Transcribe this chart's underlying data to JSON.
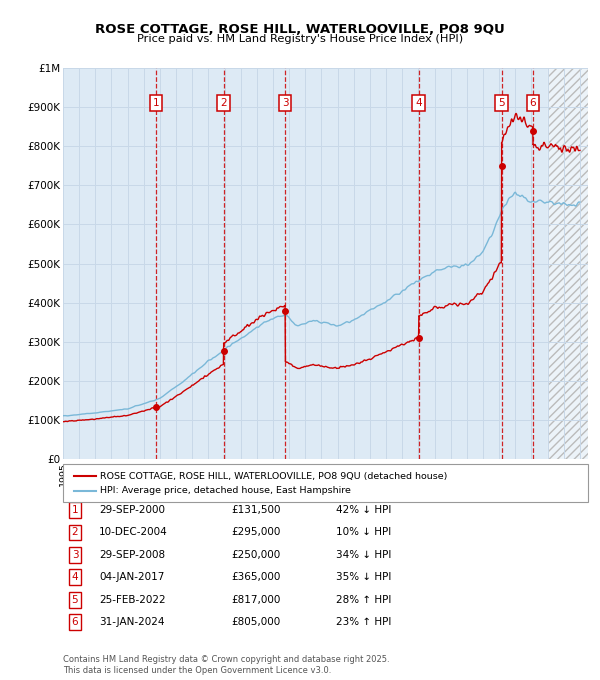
{
  "title": "ROSE COTTAGE, ROSE HILL, WATERLOOVILLE, PO8 9QU",
  "subtitle": "Price paid vs. HM Land Registry's House Price Index (HPI)",
  "xlim": [
    1995.0,
    2027.5
  ],
  "ylim": [
    0,
    1000000
  ],
  "ytick_labels": [
    "£0",
    "£100K",
    "£200K",
    "£300K",
    "£400K",
    "£500K",
    "£600K",
    "£700K",
    "£800K",
    "£900K",
    "£1M"
  ],
  "sales": [
    {
      "num": 1,
      "year": 2000.75,
      "price": 131500,
      "label": "1"
    },
    {
      "num": 2,
      "year": 2004.94,
      "price": 295000,
      "label": "2"
    },
    {
      "num": 3,
      "year": 2008.75,
      "price": 250000,
      "label": "3"
    },
    {
      "num": 4,
      "year": 2017.01,
      "price": 365000,
      "label": "4"
    },
    {
      "num": 5,
      "year": 2022.15,
      "price": 817000,
      "label": "5"
    },
    {
      "num": 6,
      "year": 2024.08,
      "price": 805000,
      "label": "6"
    }
  ],
  "legend_line1": "ROSE COTTAGE, ROSE HILL, WATERLOOVILLE, PO8 9QU (detached house)",
  "legend_line2": "HPI: Average price, detached house, East Hampshire",
  "table": [
    {
      "num": "1",
      "date": "29-SEP-2000",
      "price": "£131,500",
      "hpi": "42% ↓ HPI"
    },
    {
      "num": "2",
      "date": "10-DEC-2004",
      "price": "£295,000",
      "hpi": "10% ↓ HPI"
    },
    {
      "num": "3",
      "date": "29-SEP-2008",
      "price": "£250,000",
      "hpi": "34% ↓ HPI"
    },
    {
      "num": "4",
      "date": "04-JAN-2017",
      "price": "£365,000",
      "hpi": "35% ↓ HPI"
    },
    {
      "num": "5",
      "date": "25-FEB-2022",
      "price": "£817,000",
      "hpi": "28% ↑ HPI"
    },
    {
      "num": "6",
      "date": "31-JAN-2024",
      "price": "£805,000",
      "hpi": "23% ↑ HPI"
    }
  ],
  "footer": "Contains HM Land Registry data © Crown copyright and database right 2025.\nThis data is licensed under the Open Government Licence v3.0.",
  "hpi_color": "#7ab8d8",
  "price_color": "#cc0000",
  "sale_vline_color": "#cc0000",
  "grid_color": "#c8d8e8",
  "bg_color": "#ddeaf5",
  "hpi_waypoints": [
    [
      1995.0,
      110000
    ],
    [
      1997.0,
      118000
    ],
    [
      1999.0,
      128000
    ],
    [
      2001.0,
      155000
    ],
    [
      2002.5,
      200000
    ],
    [
      2004.0,
      250000
    ],
    [
      2005.5,
      295000
    ],
    [
      2007.5,
      350000
    ],
    [
      2008.75,
      370000
    ],
    [
      2009.5,
      340000
    ],
    [
      2010.5,
      355000
    ],
    [
      2012.0,
      340000
    ],
    [
      2013.0,
      355000
    ],
    [
      2014.5,
      390000
    ],
    [
      2016.0,
      430000
    ],
    [
      2017.0,
      455000
    ],
    [
      2018.0,
      480000
    ],
    [
      2019.0,
      490000
    ],
    [
      2020.0,
      495000
    ],
    [
      2021.0,
      530000
    ],
    [
      2021.5,
      570000
    ],
    [
      2022.0,
      620000
    ],
    [
      2022.5,
      660000
    ],
    [
      2023.0,
      680000
    ],
    [
      2023.5,
      670000
    ],
    [
      2024.0,
      660000
    ],
    [
      2025.0,
      655000
    ],
    [
      2026.0,
      650000
    ],
    [
      2027.0,
      648000
    ]
  ]
}
